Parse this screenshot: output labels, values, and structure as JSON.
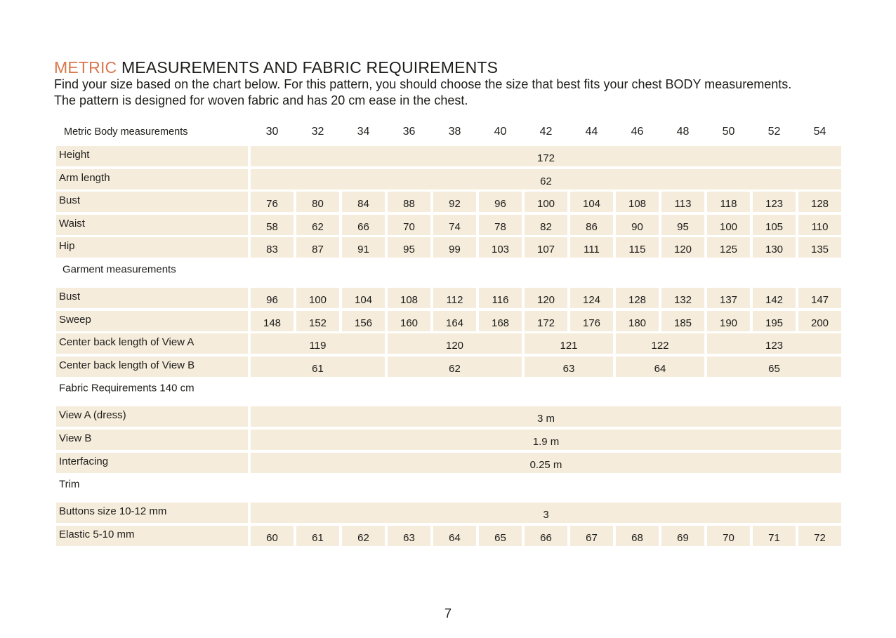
{
  "header": {
    "title_accent": "METRIC",
    "title_rest": "MEASUREMENTS AND FABRIC REQUIREMENTS",
    "intro": [
      "Find your size based on the chart below. For this pattern, you should choose the size that best fits your chest BODY measurements.",
      "The pattern is designed for woven fabric and has 20 cm ease in the chest."
    ]
  },
  "table": {
    "corner": "Metric Body measurements",
    "sizes": [
      30,
      32,
      34,
      36,
      38,
      40,
      42,
      44,
      46,
      48,
      50,
      52,
      54
    ],
    "sections": [
      {
        "rows": [
          {
            "label": "Height",
            "cells": [
              172
            ]
          },
          {
            "label": "Arm length",
            "cells": [
              62
            ]
          },
          {
            "label": "Bust",
            "cells": [
              76,
              80,
              84,
              88,
              92,
              96,
              100,
              104,
              108,
              113,
              118,
              123,
              128
            ]
          },
          {
            "label": "Waist",
            "cells": [
              58,
              62,
              66,
              70,
              74,
              78,
              82,
              86,
              90,
              95,
              100,
              105,
              110
            ]
          },
          {
            "label": "Hip",
            "cells": [
              83,
              87,
              91,
              95,
              99,
              103,
              107,
              111,
              115,
              120,
              125,
              130,
              135
            ]
          }
        ]
      },
      {
        "heading": "Garment measurements",
        "rows": [
          {
            "label": "Bust",
            "cells": [
              96,
              100,
              104,
              108,
              112,
              116,
              120,
              124,
              128,
              132,
              137,
              142,
              147
            ]
          },
          {
            "label": "Sweep",
            "cells": [
              148,
              152,
              156,
              160,
              164,
              168,
              172,
              176,
              180,
              185,
              190,
              195,
              200
            ]
          },
          {
            "label": "Center back length of View A",
            "cells": [
              119,
              120,
              121,
              122,
              123
            ]
          },
          {
            "label": "Center back length of View  B",
            "cells": [
              61,
              62,
              63,
              64,
              65
            ]
          }
        ]
      },
      {
        "heading": "Fabric Requirements 140 cm",
        "rows": [
          {
            "label": "View A (dress)",
            "cells": [
              "3 m"
            ]
          },
          {
            "label": "View B",
            "cells": [
              "1.9 m"
            ]
          },
          {
            "label": "Interfacing",
            "cells": [
              "0.25 m"
            ]
          }
        ]
      },
      {
        "heading": "Trim",
        "rows": [
          {
            "label": "Buttons size 10-12 mm",
            "cells": [
              3
            ]
          },
          {
            "label": "Elastic 5-10 mm",
            "cells": [
              60,
              61,
              62,
              63,
              64,
              65,
              66,
              67,
              68,
              69,
              70,
              71,
              72
            ]
          }
        ]
      }
    ]
  },
  "page_number": 7
}
